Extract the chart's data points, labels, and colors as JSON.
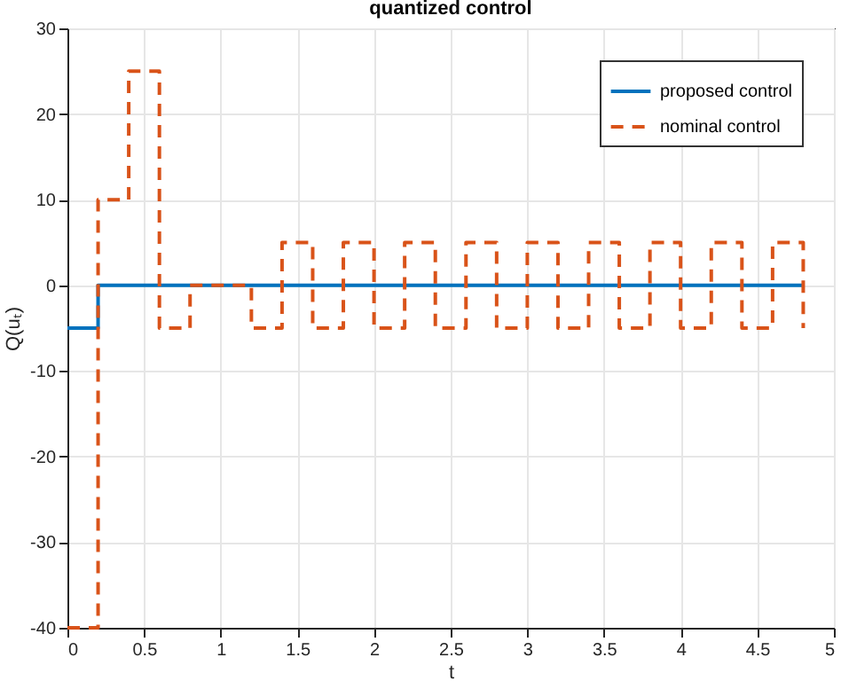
{
  "chart_data": {
    "type": "step",
    "title": "quantized control",
    "xlabel": "t",
    "ylabel": "Q(uₜ)",
    "xlim": [
      0,
      5
    ],
    "xticks": [
      0,
      0.5,
      1,
      1.5,
      2,
      2.5,
      3,
      3.5,
      4,
      4.5,
      5
    ],
    "ylim": [
      -40,
      30
    ],
    "yticks": [
      -40,
      -30,
      -20,
      -10,
      0,
      10,
      20,
      30
    ],
    "grid": true,
    "legend": "top right",
    "series": [
      {
        "name": "proposed control",
        "color": "#0072bd",
        "line_style": "solid",
        "x": [
          0,
          0.2,
          4.8
        ],
        "values": [
          -5,
          0,
          0
        ]
      },
      {
        "name": "nominal control",
        "color": "#d95319",
        "line_style": "dashed",
        "x": [
          0,
          0.2,
          0.4,
          0.6,
          0.8,
          1.2,
          1.4,
          1.6,
          1.8,
          2,
          2.2,
          2.4,
          2.6,
          2.8,
          3,
          3.2,
          3.4,
          3.6,
          3.8,
          4,
          4.2,
          4.4,
          4.6,
          4.8
        ],
        "values": [
          -40,
          10,
          25,
          -5,
          0,
          -5,
          5,
          -5,
          5,
          -5,
          5,
          -5,
          5,
          -5,
          5,
          -5,
          5,
          -5,
          5,
          -5,
          5,
          -5,
          5,
          -5
        ]
      }
    ]
  }
}
